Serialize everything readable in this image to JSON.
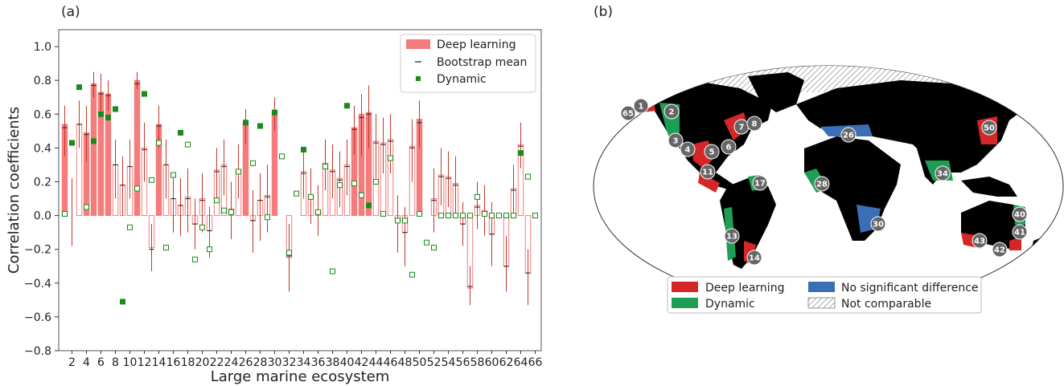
{
  "panel_a_label": "(a)",
  "panel_b_label": "(b)",
  "chart_data": [
    {
      "type": "bar",
      "xlabel": "Large marine ecosystem",
      "ylabel": "Correlation coefficients",
      "ylim": [
        -0.8,
        1.1
      ],
      "yticks": [
        -0.8,
        -0.6,
        -0.4,
        -0.2,
        0.0,
        0.2,
        0.4,
        0.6,
        0.8,
        1.0
      ],
      "ytick_labels": [
        "−0.8",
        "−0.6",
        "−0.4",
        "−0.2",
        "0.0",
        "0.2",
        "0.4",
        "0.6",
        "0.8",
        "1.0"
      ],
      "categories": [
        "1",
        "2",
        "3",
        "4",
        "5",
        "6",
        "7",
        "8",
        "9",
        "10",
        "11",
        "12",
        "13",
        "14",
        "15",
        "16",
        "17",
        "18",
        "19",
        "20",
        "21",
        "22",
        "23",
        "24",
        "25",
        "26",
        "27",
        "28",
        "29",
        "30",
        "31",
        "32",
        "33",
        "34",
        "35",
        "36",
        "37",
        "38",
        "39",
        "40",
        "41",
        "42",
        "43",
        "44",
        "45",
        "46",
        "47",
        "48",
        "49",
        "50",
        "51",
        "52",
        "53",
        "54",
        "55",
        "56",
        "57",
        "58",
        "59",
        "60",
        "61",
        "62",
        "63",
        "64",
        "65",
        "66"
      ],
      "xtick_labels": [
        "2",
        "4",
        "6",
        "8",
        "10",
        "12",
        "14",
        "16",
        "18",
        "20",
        "22",
        "24",
        "26",
        "28",
        "30",
        "32",
        "34",
        "36",
        "38",
        "40",
        "42",
        "44",
        "46",
        "48",
        "50",
        "52",
        "54",
        "56",
        "58",
        "60",
        "62",
        "64",
        "66"
      ],
      "grid": false,
      "legend_position": "top-right",
      "legend": [
        {
          "label": "Deep learning",
          "marker": "filled-bar"
        },
        {
          "label": "Bootstrap mean",
          "marker": "dash"
        },
        {
          "label": "Dynamic",
          "marker": "filled-square"
        }
      ],
      "series": [
        {
          "name": "Deep learning",
          "values": [
            0.54,
            0.0,
            0.54,
            0.49,
            0.78,
            0.73,
            0.72,
            0.3,
            0.18,
            0.29,
            0.8,
            0.4,
            -0.19,
            0.54,
            0.3,
            0.1,
            0.06,
            0.11,
            -0.05,
            0.1,
            -0.09,
            0.27,
            0.3,
            0.04,
            0.27,
            0.55,
            -0.03,
            0.09,
            0.12,
            0.61,
            0.0,
            -0.25,
            0.0,
            0.26,
            0.12,
            0.02,
            0.31,
            0.27,
            0.22,
            0.3,
            0.52,
            0.6,
            0.61,
            0.44,
            0.43,
            0.45,
            -0.03,
            -0.1,
            0.41,
            0.57,
            0.0,
            0.1,
            0.24,
            0.23,
            0.19,
            -0.05,
            -0.43,
            0.06,
            0.03,
            -0.11,
            0.0,
            -0.3,
            0.16,
            0.42,
            -0.34,
            0.0
          ],
          "significant": [
            true,
            false,
            false,
            true,
            true,
            true,
            true,
            false,
            false,
            false,
            true,
            false,
            false,
            true,
            false,
            false,
            false,
            false,
            false,
            false,
            false,
            false,
            false,
            false,
            false,
            true,
            false,
            false,
            false,
            true,
            false,
            false,
            false,
            false,
            false,
            false,
            false,
            false,
            false,
            false,
            true,
            true,
            true,
            false,
            false,
            false,
            false,
            false,
            false,
            true,
            false,
            false,
            false,
            false,
            false,
            false,
            false,
            false,
            false,
            false,
            false,
            false,
            false,
            false,
            false,
            false
          ],
          "ci_low": [
            0.35,
            -0.18,
            0.4,
            0.32,
            0.7,
            0.62,
            0.62,
            0.1,
            0.0,
            0.1,
            0.75,
            0.2,
            -0.33,
            0.4,
            0.1,
            -0.1,
            -0.12,
            -0.1,
            -0.2,
            -0.1,
            -0.25,
            0.1,
            0.12,
            -0.14,
            0.1,
            0.42,
            -0.22,
            -0.15,
            -0.1,
            0.5,
            0.0,
            -0.45,
            0.0,
            0.1,
            -0.05,
            -0.12,
            0.15,
            0.1,
            0.05,
            0.12,
            0.36,
            0.35,
            0.4,
            0.22,
            0.25,
            0.25,
            -0.22,
            -0.3,
            0.2,
            0.4,
            0.0,
            -0.1,
            0.06,
            0.05,
            0.0,
            -0.18,
            -0.53,
            -0.08,
            -0.12,
            -0.3,
            0.0,
            -0.45,
            0.0,
            0.28,
            -0.53,
            0.0
          ],
          "ci_high": [
            0.65,
            0.22,
            0.68,
            0.65,
            0.85,
            0.84,
            0.8,
            0.45,
            0.35,
            0.45,
            0.85,
            0.55,
            -0.05,
            0.65,
            0.45,
            0.25,
            0.22,
            0.28,
            0.1,
            0.25,
            0.05,
            0.4,
            0.45,
            0.2,
            0.42,
            0.63,
            0.15,
            0.25,
            0.3,
            0.7,
            0.0,
            -0.05,
            0.0,
            0.4,
            0.28,
            0.18,
            0.45,
            0.42,
            0.38,
            0.45,
            0.65,
            0.72,
            0.77,
            0.6,
            0.58,
            0.6,
            0.12,
            0.05,
            0.57,
            0.68,
            0.0,
            0.28,
            0.4,
            0.38,
            0.35,
            0.08,
            -0.3,
            0.2,
            0.18,
            0.08,
            0.0,
            -0.12,
            0.3,
            0.55,
            -0.2,
            0.0
          ],
          "bootstrap_mean": [
            0.52,
            0.0,
            0.54,
            0.48,
            0.77,
            0.72,
            0.71,
            0.3,
            0.18,
            0.29,
            0.78,
            0.39,
            -0.2,
            0.53,
            0.3,
            0.1,
            0.06,
            0.1,
            -0.05,
            0.09,
            -0.09,
            0.26,
            0.29,
            0.03,
            0.26,
            0.54,
            -0.03,
            0.09,
            0.11,
            0.6,
            0.0,
            -0.24,
            0.0,
            0.25,
            0.11,
            0.01,
            0.3,
            0.26,
            0.21,
            0.29,
            0.51,
            0.58,
            0.6,
            0.43,
            0.42,
            0.44,
            -0.03,
            -0.1,
            0.4,
            0.55,
            0.0,
            0.09,
            0.23,
            0.22,
            0.18,
            -0.05,
            -0.42,
            0.05,
            0.02,
            -0.11,
            0.0,
            -0.3,
            0.15,
            0.41,
            -0.34,
            0.0
          ]
        },
        {
          "name": "Dynamic",
          "values": [
            0.01,
            0.43,
            0.76,
            0.05,
            0.44,
            0.6,
            0.58,
            0.63,
            -0.51,
            -0.07,
            0.16,
            0.72,
            0.21,
            0.43,
            -0.19,
            0.24,
            0.49,
            0.42,
            -0.26,
            -0.07,
            -0.2,
            0.09,
            0.03,
            0.02,
            0.26,
            0.55,
            0.31,
            0.53,
            -0.01,
            0.61,
            0.35,
            -0.22,
            0.13,
            0.39,
            0.11,
            0.02,
            0.29,
            -0.33,
            0.18,
            0.65,
            0.19,
            0.12,
            0.06,
            0.2,
            0.01,
            0.34,
            -0.03,
            -0.03,
            -0.35,
            0.01,
            -0.16,
            -0.19,
            0.0,
            0.0,
            0.0,
            0.0,
            0.0,
            0.11,
            0.01,
            0.0,
            0.0,
            0.0,
            0.0,
            0.37,
            0.23,
            0.0
          ],
          "significant": [
            false,
            true,
            true,
            false,
            true,
            true,
            true,
            true,
            true,
            false,
            false,
            true,
            false,
            false,
            false,
            false,
            true,
            false,
            false,
            false,
            false,
            false,
            false,
            false,
            false,
            true,
            false,
            true,
            false,
            true,
            false,
            false,
            false,
            true,
            false,
            false,
            false,
            false,
            false,
            true,
            false,
            false,
            true,
            false,
            false,
            false,
            false,
            false,
            false,
            false,
            false,
            false,
            false,
            false,
            false,
            false,
            false,
            false,
            false,
            false,
            false,
            false,
            false,
            true,
            false,
            false
          ]
        }
      ]
    },
    {
      "type": "map",
      "legend": [
        {
          "label": "Deep learning",
          "color": "#d62728"
        },
        {
          "label": "No significant difference",
          "color": "#3a6fb5"
        },
        {
          "label": "Dynamic",
          "color": "#1e9e54"
        },
        {
          "label": "Not comparable",
          "pattern": "hatched"
        }
      ],
      "region_labels": [
        "1",
        "2",
        "3",
        "4",
        "5",
        "6",
        "7",
        "8",
        "11",
        "13",
        "14",
        "17",
        "26",
        "28",
        "30",
        "34",
        "40",
        "41",
        "42",
        "43",
        "50",
        "65"
      ]
    }
  ],
  "colors": {
    "deep_bar": "#f47c7c",
    "deep_err": "#c0392b",
    "dynamic": "#1a8a1a",
    "ocean": "#ffffff",
    "land": "#000000"
  }
}
